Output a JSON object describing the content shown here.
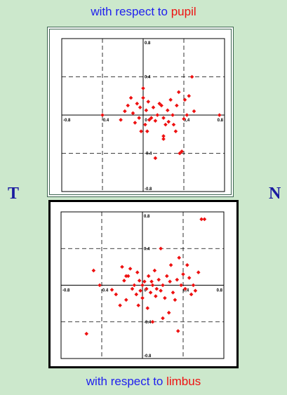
{
  "labels": {
    "top_prefix": "with respect to ",
    "top_reference": "pupil",
    "bottom_prefix": "with respect to ",
    "bottom_reference": "limbus",
    "left_side": "T",
    "right_side": "N"
  },
  "colors": {
    "background": "#cce8cc",
    "caption_text": "#2020ee",
    "reference_text": "#ee1111",
    "side_text": "#1a1aa0",
    "points": "#ee1111"
  },
  "chart_data": [
    {
      "type": "scatter",
      "title": "",
      "xlabel": "",
      "ylabel": "",
      "xlim": [
        -0.8,
        0.8
      ],
      "ylim": [
        -0.8,
        0.8
      ],
      "grid": "dashed at ±0.4",
      "x_ticks": [
        "-0.8",
        "-0.4",
        "0",
        "0.4",
        "0.8"
      ],
      "y_ticks": [
        "0.8",
        "0.4",
        "0",
        "-0.4",
        "-0.8"
      ],
      "x_tick_labels": [
        "-0.8",
        "-0.4",
        "0",
        "0,4",
        "0.8"
      ],
      "y_tick_labels": [
        "0.8",
        "0.4",
        "",
        "-0.4",
        "-0.8"
      ],
      "marker": "diamond",
      "series": [
        {
          "points": [
            [
              -0.4,
              0.0
            ],
            [
              -0.22,
              -0.05
            ],
            [
              -0.18,
              0.04
            ],
            [
              -0.15,
              0.1
            ],
            [
              -0.12,
              0.18
            ],
            [
              -0.1,
              0.02
            ],
            [
              -0.08,
              -0.08
            ],
            [
              -0.06,
              0.12
            ],
            [
              -0.04,
              -0.03
            ],
            [
              -0.03,
              0.08
            ],
            [
              -0.02,
              -0.17
            ],
            [
              0.0,
              0.28
            ],
            [
              0.0,
              0.18
            ],
            [
              0.02,
              -0.1
            ],
            [
              0.03,
              0.05
            ],
            [
              0.04,
              -0.17
            ],
            [
              0.05,
              0.14
            ],
            [
              0.06,
              -0.05
            ],
            [
              0.08,
              -0.03
            ],
            [
              0.1,
              0.08
            ],
            [
              0.12,
              -0.06
            ],
            [
              0.14,
              0.0
            ],
            [
              0.16,
              0.12
            ],
            [
              0.18,
              0.1
            ],
            [
              0.2,
              -0.03
            ],
            [
              0.2,
              -0.22
            ],
            [
              0.22,
              -0.1
            ],
            [
              0.24,
              0.05
            ],
            [
              0.25,
              -0.07
            ],
            [
              0.27,
              0.16
            ],
            [
              0.29,
              0.0
            ],
            [
              0.3,
              -0.1
            ],
            [
              0.32,
              -0.17
            ],
            [
              0.33,
              0.1
            ],
            [
              0.35,
              0.24
            ],
            [
              0.36,
              -0.4
            ],
            [
              0.38,
              -0.38
            ],
            [
              0.4,
              -0.04
            ],
            [
              0.41,
              0.16
            ],
            [
              0.43,
              0.0
            ],
            [
              0.45,
              0.2
            ],
            [
              0.48,
              0.4
            ],
            [
              0.5,
              0.04
            ],
            [
              0.75,
              0.0
            ],
            [
              0.12,
              -0.45
            ],
            [
              0.2,
              -0.25
            ]
          ]
        }
      ]
    },
    {
      "type": "scatter",
      "title": "",
      "xlabel": "",
      "ylabel": "",
      "xlim": [
        -0.8,
        0.8
      ],
      "ylim": [
        -0.8,
        0.8
      ],
      "grid": "dashed at ±0.4",
      "x_ticks": [
        "-0.8",
        "-0.4",
        "0",
        "0.4",
        "0.8"
      ],
      "y_ticks": [
        "0.8",
        "0.4",
        "0",
        "-0.4",
        "-0.8"
      ],
      "x_tick_labels": [
        "-0.8",
        "-0.4",
        "0",
        "0,4",
        "0.8"
      ],
      "y_tick_labels": [
        "0.8",
        "0.4",
        "",
        "-0.4",
        "-0.8"
      ],
      "marker": "diamond",
      "series": [
        {
          "points": [
            [
              -0.55,
              -0.53
            ],
            [
              -0.48,
              0.16
            ],
            [
              -0.42,
              0.0
            ],
            [
              -0.3,
              -0.05
            ],
            [
              -0.26,
              -0.1
            ],
            [
              -0.22,
              -0.22
            ],
            [
              -0.2,
              0.2
            ],
            [
              -0.18,
              0.05
            ],
            [
              -0.16,
              -0.16
            ],
            [
              -0.14,
              0.1
            ],
            [
              -0.12,
              0.18
            ],
            [
              -0.1,
              -0.04
            ],
            [
              -0.08,
              0.0
            ],
            [
              -0.06,
              -0.1
            ],
            [
              -0.05,
              0.14
            ],
            [
              -0.04,
              -0.22
            ],
            [
              -0.03,
              0.05
            ],
            [
              -0.02,
              -0.06
            ],
            [
              0.0,
              0.0
            ],
            [
              0.0,
              -0.14
            ],
            [
              0.02,
              0.04
            ],
            [
              0.04,
              -0.04
            ],
            [
              0.05,
              -0.25
            ],
            [
              0.06,
              0.1
            ],
            [
              0.08,
              -0.08
            ],
            [
              0.09,
              0.04
            ],
            [
              0.1,
              0.0
            ],
            [
              0.12,
              0.16
            ],
            [
              0.13,
              -0.12
            ],
            [
              0.14,
              -0.04
            ],
            [
              0.16,
              0.06
            ],
            [
              0.18,
              -0.06
            ],
            [
              0.18,
              0.4
            ],
            [
              0.2,
              0.0
            ],
            [
              0.22,
              -0.14
            ],
            [
              0.24,
              0.1
            ],
            [
              0.26,
              -0.3
            ],
            [
              0.27,
              0.04
            ],
            [
              0.28,
              0.22
            ],
            [
              0.3,
              -0.08
            ],
            [
              0.32,
              -0.16
            ],
            [
              0.34,
              0.06
            ],
            [
              0.35,
              -0.5
            ],
            [
              0.36,
              0.3
            ],
            [
              0.38,
              0.0
            ],
            [
              0.4,
              0.12
            ],
            [
              0.42,
              -0.04
            ],
            [
              0.44,
              0.22
            ],
            [
              0.46,
              0.08
            ],
            [
              0.48,
              -0.1
            ],
            [
              0.5,
              0.0
            ],
            [
              0.52,
              -0.06
            ],
            [
              0.55,
              0.14
            ],
            [
              0.58,
              0.72
            ],
            [
              0.61,
              0.72
            ],
            [
              0.1,
              -0.4
            ],
            [
              0.2,
              -0.36
            ],
            [
              -0.16,
              0.1
            ]
          ]
        }
      ]
    }
  ]
}
